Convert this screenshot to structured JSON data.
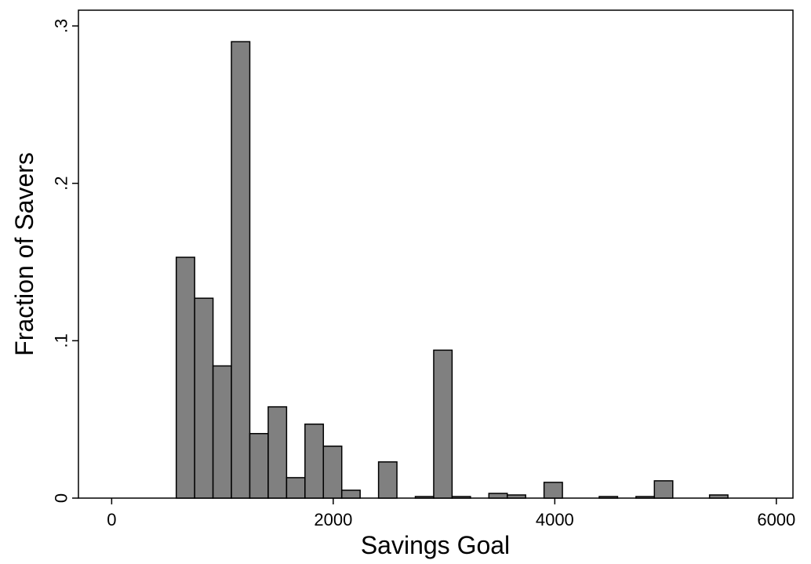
{
  "chart_data": {
    "type": "bar",
    "subtype": "histogram",
    "title": "",
    "xlabel": "Savings Goal",
    "ylabel": "Fraction of Savers",
    "xlim": [
      -300,
      6150
    ],
    "ylim": [
      0,
      0.31
    ],
    "x_ticks": [
      {
        "value": 0,
        "label": "0"
      },
      {
        "value": 2000,
        "label": "2000"
      },
      {
        "value": 4000,
        "label": "4000"
      },
      {
        "value": 6000,
        "label": "6000"
      }
    ],
    "y_ticks": [
      {
        "value": 0,
        "label": "0"
      },
      {
        "value": 0.1,
        "label": ".1"
      },
      {
        "value": 0.2,
        "label": ".2"
      },
      {
        "value": 0.3,
        "label": ".3"
      }
    ],
    "grid": false,
    "legend": "none",
    "bar_color": "#808080",
    "bar_edge_color": "#000000",
    "bins": [
      {
        "start": 583,
        "end": 749,
        "value": 0.153
      },
      {
        "start": 749,
        "end": 915,
        "value": 0.127
      },
      {
        "start": 915,
        "end": 1081,
        "value": 0.084
      },
      {
        "start": 1081,
        "end": 1247,
        "value": 0.29
      },
      {
        "start": 1247,
        "end": 1413,
        "value": 0.041
      },
      {
        "start": 1413,
        "end": 1579,
        "value": 0.058
      },
      {
        "start": 1579,
        "end": 1745,
        "value": 0.013
      },
      {
        "start": 1745,
        "end": 1911,
        "value": 0.047
      },
      {
        "start": 1911,
        "end": 2077,
        "value": 0.033
      },
      {
        "start": 2077,
        "end": 2243,
        "value": 0.005
      },
      {
        "start": 2409,
        "end": 2575,
        "value": 0.023
      },
      {
        "start": 2741,
        "end": 2907,
        "value": 0.001
      },
      {
        "start": 2907,
        "end": 3073,
        "value": 0.094
      },
      {
        "start": 3073,
        "end": 3239,
        "value": 0.001
      },
      {
        "start": 3405,
        "end": 3571,
        "value": 0.003
      },
      {
        "start": 3571,
        "end": 3737,
        "value": 0.002
      },
      {
        "start": 3903,
        "end": 4069,
        "value": 0.01
      },
      {
        "start": 4401,
        "end": 4567,
        "value": 0.001
      },
      {
        "start": 4733,
        "end": 4899,
        "value": 0.001
      },
      {
        "start": 4899,
        "end": 5065,
        "value": 0.011
      },
      {
        "start": 5397,
        "end": 5563,
        "value": 0.002
      }
    ]
  }
}
